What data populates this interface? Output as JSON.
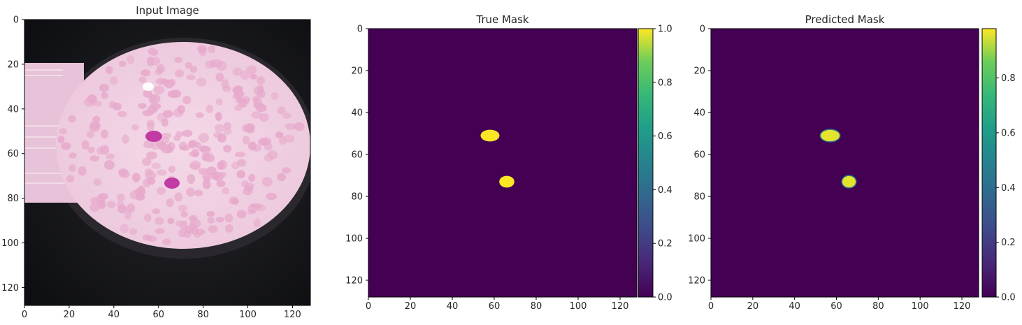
{
  "chart_data": [
    {
      "type": "image",
      "title": "Input Image",
      "xlim": [
        0,
        128
      ],
      "ylim": [
        128,
        0
      ],
      "xticks": [
        0,
        20,
        40,
        60,
        80,
        100,
        120
      ],
      "yticks": [
        0,
        20,
        40,
        60,
        80,
        100,
        120
      ],
      "content": "microscope field of view with pink red blood cells and two darker magenta stained cells"
    },
    {
      "type": "heatmap",
      "title": "True Mask",
      "xlim": [
        0,
        128
      ],
      "ylim": [
        128,
        0
      ],
      "xticks": [
        0,
        20,
        40,
        60,
        80,
        100,
        120
      ],
      "yticks": [
        0,
        20,
        40,
        60,
        80,
        100,
        120
      ],
      "colormap": "viridis",
      "background_value": 0.0,
      "blobs": [
        {
          "x": 58,
          "y": 51,
          "rx": 4.5,
          "ry": 2.8,
          "value": 1.0
        },
        {
          "x": 66,
          "y": 73,
          "rx": 3.6,
          "ry": 2.8,
          "value": 1.0
        }
      ],
      "colorbar": {
        "range": [
          0.0,
          1.0
        ],
        "ticks": [
          "0.0",
          "0.2",
          "0.4",
          "0.6",
          "0.8",
          "1.0"
        ]
      }
    },
    {
      "type": "heatmap",
      "title": "Predicted Mask",
      "xlim": [
        0,
        128
      ],
      "ylim": [
        128,
        0
      ],
      "xticks": [
        0,
        20,
        40,
        60,
        80,
        100,
        120
      ],
      "yticks": [
        0,
        20,
        40,
        60,
        80,
        100,
        120
      ],
      "colormap": "viridis",
      "background_value": 0.0,
      "blobs": [
        {
          "x": 57,
          "y": 51,
          "rx": 4.5,
          "ry": 2.7,
          "value": 0.98
        },
        {
          "x": 66,
          "y": 73,
          "rx": 3.2,
          "ry": 2.7,
          "value": 0.98
        }
      ],
      "colorbar": {
        "range": [
          0.0,
          0.98
        ],
        "ticks": [
          "0.0",
          "0.2",
          "0.4",
          "0.6",
          "0.8"
        ]
      }
    }
  ],
  "colors": {
    "viridis_low": "#440154",
    "viridis_high": "#fde725",
    "cell_pink": "#e7a9cb",
    "field_pink": "#f3d7e6",
    "stain_magenta": "#c23aa4"
  }
}
